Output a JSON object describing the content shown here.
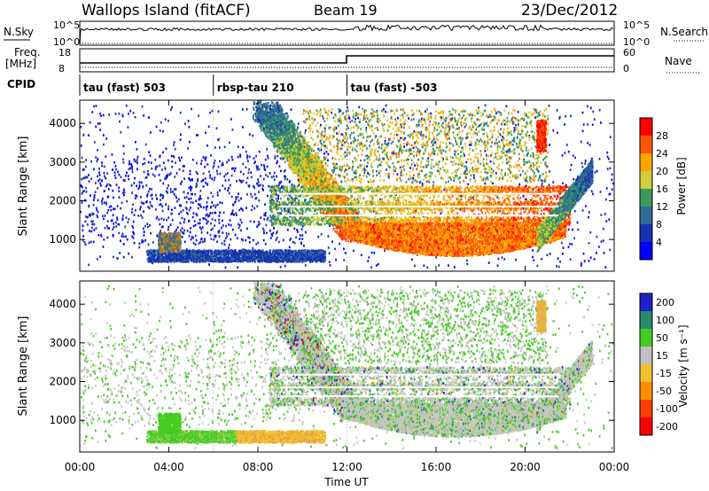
{
  "header": {
    "station": "Wallops Island (fitACF)",
    "beam": "Beam 19",
    "date": "23/Dec/2012"
  },
  "noise_panel": {
    "left_label": "N.Sky",
    "right_label": "N.Search",
    "left_ticks": [
      "10^5",
      "10^0"
    ],
    "right_ticks": [
      "10^5",
      "10^0"
    ]
  },
  "freq_panel": {
    "left_label_line1": "Freq.",
    "left_label_line2": "[MHz]",
    "right_label": "Nave",
    "left_ticks": [
      "18",
      "8"
    ],
    "right_ticks": [
      "60",
      "0"
    ],
    "cpid_label": "CPID"
  },
  "cpid": [
    {
      "start": 0,
      "end": 6.0,
      "label": "tau (fast) 503"
    },
    {
      "start": 6.0,
      "end": 12.0,
      "label": "rbsp-tau 210"
    },
    {
      "start": 12.0,
      "end": 24.0,
      "label": "tau (fast) -503"
    }
  ],
  "chart_data": [
    {
      "type": "heatmap",
      "name": "power",
      "xlabel": "Time UT",
      "ylabel": "Slant Range [km]",
      "xlim": [
        0,
        24
      ],
      "ylim": [
        180,
        4600
      ],
      "x_ticks": [
        "00:00",
        "04:00",
        "08:00",
        "12:00",
        "16:00",
        "20:00",
        "00:00"
      ],
      "y_ticks": [
        1000,
        2000,
        3000,
        4000
      ],
      "colorbar": {
        "label": "Power [dB]",
        "ticks": [
          "28",
          "24",
          "20",
          "16",
          "12",
          "8",
          "4"
        ],
        "colors": [
          "#ff0000",
          "#ff5500",
          "#ffa500",
          "#cfcf3a",
          "#3a9a5a",
          "#2e6a9a",
          "#1830b0",
          "#0000ff"
        ]
      }
    },
    {
      "type": "heatmap",
      "name": "velocity",
      "xlabel": "Time UT",
      "ylabel": "Slant Range [km]",
      "xlim": [
        0,
        24
      ],
      "ylim": [
        180,
        4600
      ],
      "x_ticks": [
        "00:00",
        "04:00",
        "08:00",
        "12:00",
        "16:00",
        "20:00",
        "00:00"
      ],
      "y_ticks": [
        1000,
        2000,
        3000,
        4000
      ],
      "colorbar": {
        "label": "Velocity [m s⁻¹]",
        "ticks": [
          "200",
          "100",
          "50",
          "15",
          "-15",
          "-50",
          "-100",
          "-200"
        ],
        "colors": [
          "#2020c8",
          "#2a8a6a",
          "#44cc22",
          "#c0c0c0",
          "#f0c030",
          "#ff8c00",
          "#ff4000",
          "#ff0000"
        ]
      }
    }
  ],
  "x_axis": {
    "label": "Time UT",
    "ticks": [
      "00:00",
      "04:00",
      "08:00",
      "12:00",
      "16:00",
      "20:00",
      "00:00"
    ]
  }
}
